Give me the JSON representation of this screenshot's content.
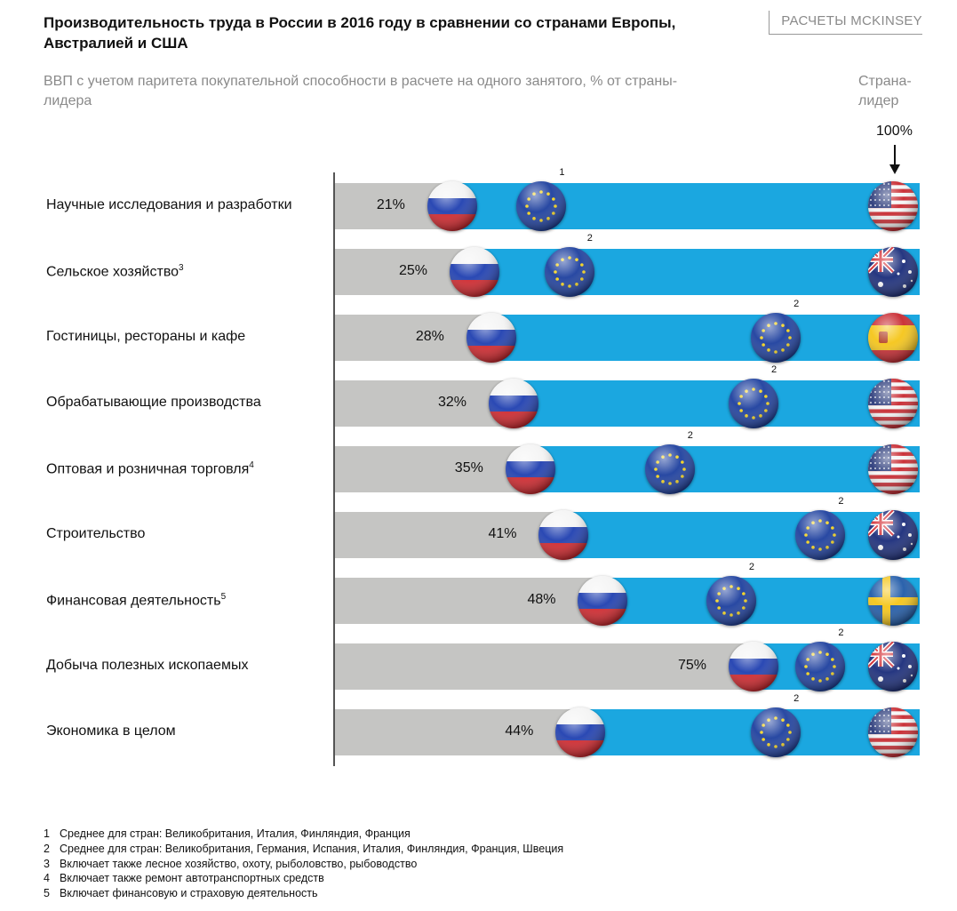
{
  "header": {
    "title": "Производительность труда в России в 2016 году в сравнении со странами Европы, Австралией и США",
    "source": "РАСЧЕТЫ MCKINSEY",
    "subtitle": "ВВП с учетом паритета покупательной способности в расчете на одного занятого, % от страны-лидера",
    "leader_label": "Страна-лидер",
    "leader_value": "100%"
  },
  "chart_data": {
    "type": "bar",
    "xlim": [
      0,
      100
    ],
    "categories": [
      {
        "label": "Научные исследования и разработки",
        "sup": "",
        "russia": 21,
        "russia_label": "21%",
        "eu": 37,
        "eu_note": "1",
        "leader": "us"
      },
      {
        "label": "Сельское хозяйство",
        "sup": "3",
        "russia": 25,
        "russia_label": "25%",
        "eu": 42,
        "eu_note": "2",
        "leader": "au"
      },
      {
        "label": "Гостиницы, рестораны и кафе",
        "sup": "",
        "russia": 28,
        "russia_label": "28%",
        "eu": 79,
        "eu_note": "2",
        "leader": "es"
      },
      {
        "label": "Обрабатывающие производства",
        "sup": "",
        "russia": 32,
        "russia_label": "32%",
        "eu": 75,
        "eu_note": "2",
        "leader": "us"
      },
      {
        "label": "Оптовая и розничная торговля",
        "sup": "4",
        "russia": 35,
        "russia_label": "35%",
        "eu": 60,
        "eu_note": "2",
        "leader": "us"
      },
      {
        "label": "Строительство",
        "sup": "",
        "russia": 41,
        "russia_label": "41%",
        "eu": 87,
        "eu_note": "2",
        "leader": "au"
      },
      {
        "label": "Финансовая деятельность",
        "sup": "5",
        "russia": 48,
        "russia_label": "48%",
        "eu": 71,
        "eu_note": "2",
        "leader": "se"
      },
      {
        "label": "Добыча полезных ископаемых",
        "sup": "",
        "russia": 75,
        "russia_label": "75%",
        "eu": 87,
        "eu_note": "2",
        "leader": "au"
      },
      {
        "label": "Экономика в целом",
        "sup": "",
        "russia": 44,
        "russia_label": "44%",
        "eu": 79,
        "eu_note": "2",
        "leader": "us"
      }
    ],
    "colors": {
      "gray": "#c5c5c3",
      "blue": "#1ba7e0"
    }
  },
  "footnotes": [
    {
      "n": "1",
      "text": "Среднее для стран: Великобритания, Италия, Финляндия, Франция"
    },
    {
      "n": "2",
      "text": "Среднее для стран: Великобритания, Германия, Испания, Италия, Финляндия, Франция, Швеция"
    },
    {
      "n": "3",
      "text": "Включает также лесное хозяйство, охоту, рыболовство, рыбоводство"
    },
    {
      "n": "4",
      "text": "Включает также ремонт автотранспортных средств"
    },
    {
      "n": "5",
      "text": "Включает финансовую и страховую деятельность"
    }
  ]
}
